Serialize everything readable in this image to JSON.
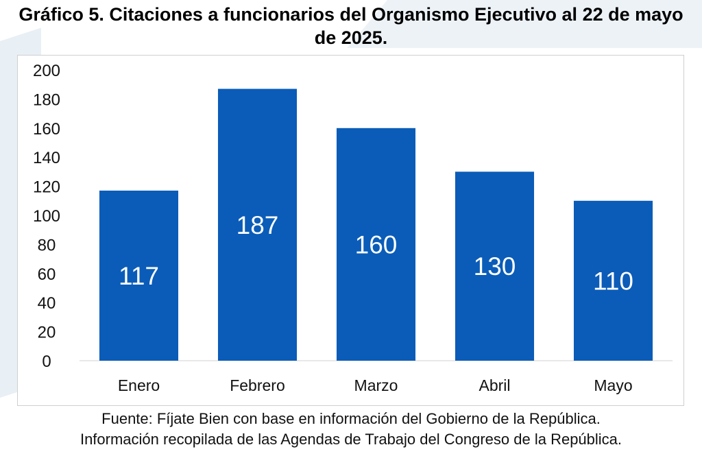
{
  "title": "Gráfico 5. Citaciones a funcionarios del Organismo Ejecutivo al 22 de mayo de 2025.",
  "footer": {
    "line1": "Fuente: Fíjate Bien con base en información del Gobierno de la República.",
    "line2": "Información recopilada de las Agendas de Trabajo del Congreso de la República."
  },
  "colors": {
    "bar": "#0a5cb8",
    "data_label": "#ffffff",
    "axis_text": "#111111",
    "axis_line": "#d0d0d0"
  },
  "chart_data": {
    "type": "bar",
    "title": "Gráfico 5. Citaciones a funcionarios del Organismo Ejecutivo al 22 de mayo de 2025.",
    "categories": [
      "Enero",
      "Febrero",
      "Marzo",
      "Abril",
      "Mayo"
    ],
    "values": [
      117,
      187,
      160,
      130,
      110
    ],
    "value_labels": [
      "117",
      "187",
      "160",
      "130",
      "110"
    ],
    "ylim": [
      0,
      200
    ],
    "yticks": [
      0,
      20,
      40,
      60,
      80,
      100,
      120,
      140,
      160,
      180,
      200
    ],
    "ytick_labels": [
      "0",
      "20",
      "40",
      "60",
      "80",
      "100",
      "120",
      "140",
      "160",
      "180",
      "200"
    ],
    "xlabel": "",
    "ylabel": "",
    "grid": false,
    "legend": "none"
  }
}
